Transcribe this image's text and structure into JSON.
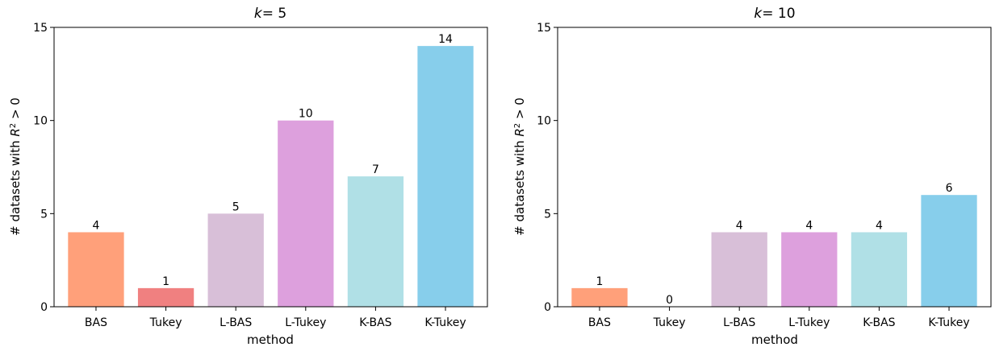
{
  "chart_data": [
    {
      "type": "bar",
      "title_var": "k",
      "title_rest": "=  5",
      "xlabel": "method",
      "ylabel_prefix": "# datasets with ",
      "ylabel_var": "R",
      "ylabel_sup": "2",
      "ylabel_suffix": " > 0",
      "ylim": [
        0,
        15
      ],
      "yticks": [
        0,
        5,
        10,
        15
      ],
      "categories": [
        "BAS",
        "Tukey",
        "L-BAS",
        "L-Tukey",
        "K-BAS",
        "K-Tukey"
      ],
      "values": [
        4,
        1,
        5,
        10,
        7,
        14
      ],
      "colors": [
        "#FFA07A",
        "#F08080",
        "#D8BFD8",
        "#DDA0DD",
        "#B0E0E6",
        "#87CEEB"
      ],
      "grid": false
    },
    {
      "type": "bar",
      "title_var": "k",
      "title_rest": "=  10",
      "xlabel": "method",
      "ylabel_prefix": "# datasets with ",
      "ylabel_var": "R",
      "ylabel_sup": "2",
      "ylabel_suffix": " > 0",
      "ylim": [
        0,
        15
      ],
      "yticks": [
        0,
        5,
        10,
        15
      ],
      "categories": [
        "BAS",
        "Tukey",
        "L-BAS",
        "L-Tukey",
        "K-BAS",
        "K-Tukey"
      ],
      "values": [
        1,
        0,
        4,
        4,
        4,
        6
      ],
      "colors": [
        "#FFA07A",
        "#F08080",
        "#D8BFD8",
        "#DDA0DD",
        "#B0E0E6",
        "#87CEEB"
      ],
      "grid": false
    }
  ]
}
